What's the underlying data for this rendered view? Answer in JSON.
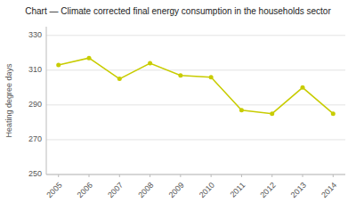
{
  "chart_data": {
    "type": "line",
    "title": "Chart — Climate corrected final energy consumption in the households sector",
    "y_label": "Heating degree days",
    "x": [
      2005,
      2006,
      2007,
      2008,
      2009,
      2010,
      2011,
      2012,
      2013,
      2014
    ],
    "values": [
      313,
      317,
      305,
      314,
      307,
      306,
      287,
      285,
      300,
      285
    ],
    "color": "#c8cc00",
    "marker": "circle",
    "xlim": [
      2004.6,
      2014.4
    ],
    "xticks": [
      2005,
      2006,
      2007,
      2008,
      2009,
      2010,
      2011,
      2012,
      2013,
      2014
    ],
    "ylim": [
      250,
      335
    ],
    "yticks": [
      250,
      270,
      290,
      310,
      330
    ],
    "grid": true
  }
}
